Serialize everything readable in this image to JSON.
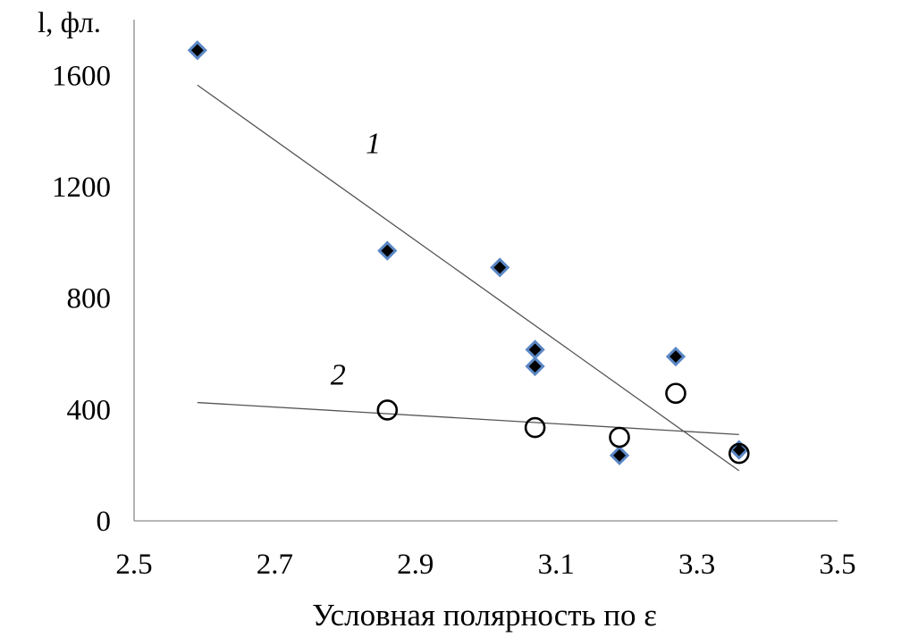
{
  "chart_data": {
    "type": "scatter",
    "title": "",
    "xlabel": "Условная полярность по ε",
    "ylabel": "l, фл.",
    "xlim": [
      2.5,
      3.5
    ],
    "ylim": [
      0,
      1800
    ],
    "x_ticks": [
      "2.5",
      "2.7",
      "2.9",
      "3.1",
      "3.3",
      "3.5"
    ],
    "y_ticks": [
      "0",
      "400",
      "800",
      "1200",
      "1600"
    ],
    "grid": false,
    "series": [
      {
        "marker": "diamond",
        "color": "#000000",
        "edge_color": "#5b87c5",
        "points": [
          {
            "x": 2.59,
            "y": 1690
          },
          {
            "x": 2.86,
            "y": 970
          },
          {
            "x": 3.02,
            "y": 910
          },
          {
            "x": 3.07,
            "y": 615
          },
          {
            "x": 3.07,
            "y": 555
          },
          {
            "x": 3.19,
            "y": 235
          },
          {
            "x": 3.27,
            "y": 590
          },
          {
            "x": 3.36,
            "y": 255
          }
        ],
        "trendline": {
          "x": [
            2.59,
            3.36
          ],
          "y": [
            1565,
            180
          ]
        }
      },
      {
        "marker": "open-circle",
        "color": "#000000",
        "points": [
          {
            "x": 2.86,
            "y": 398
          },
          {
            "x": 3.07,
            "y": 335
          },
          {
            "x": 3.19,
            "y": 300
          },
          {
            "x": 3.27,
            "y": 458
          },
          {
            "x": 3.36,
            "y": 242
          }
        ],
        "trendline": {
          "x": [
            2.59,
            3.36
          ],
          "y": [
            425,
            310
          ]
        }
      }
    ],
    "annotations": [
      {
        "text": "1",
        "x": 2.84,
        "y": 1320
      },
      {
        "text": "2",
        "x": 2.79,
        "y": 490
      }
    ]
  }
}
